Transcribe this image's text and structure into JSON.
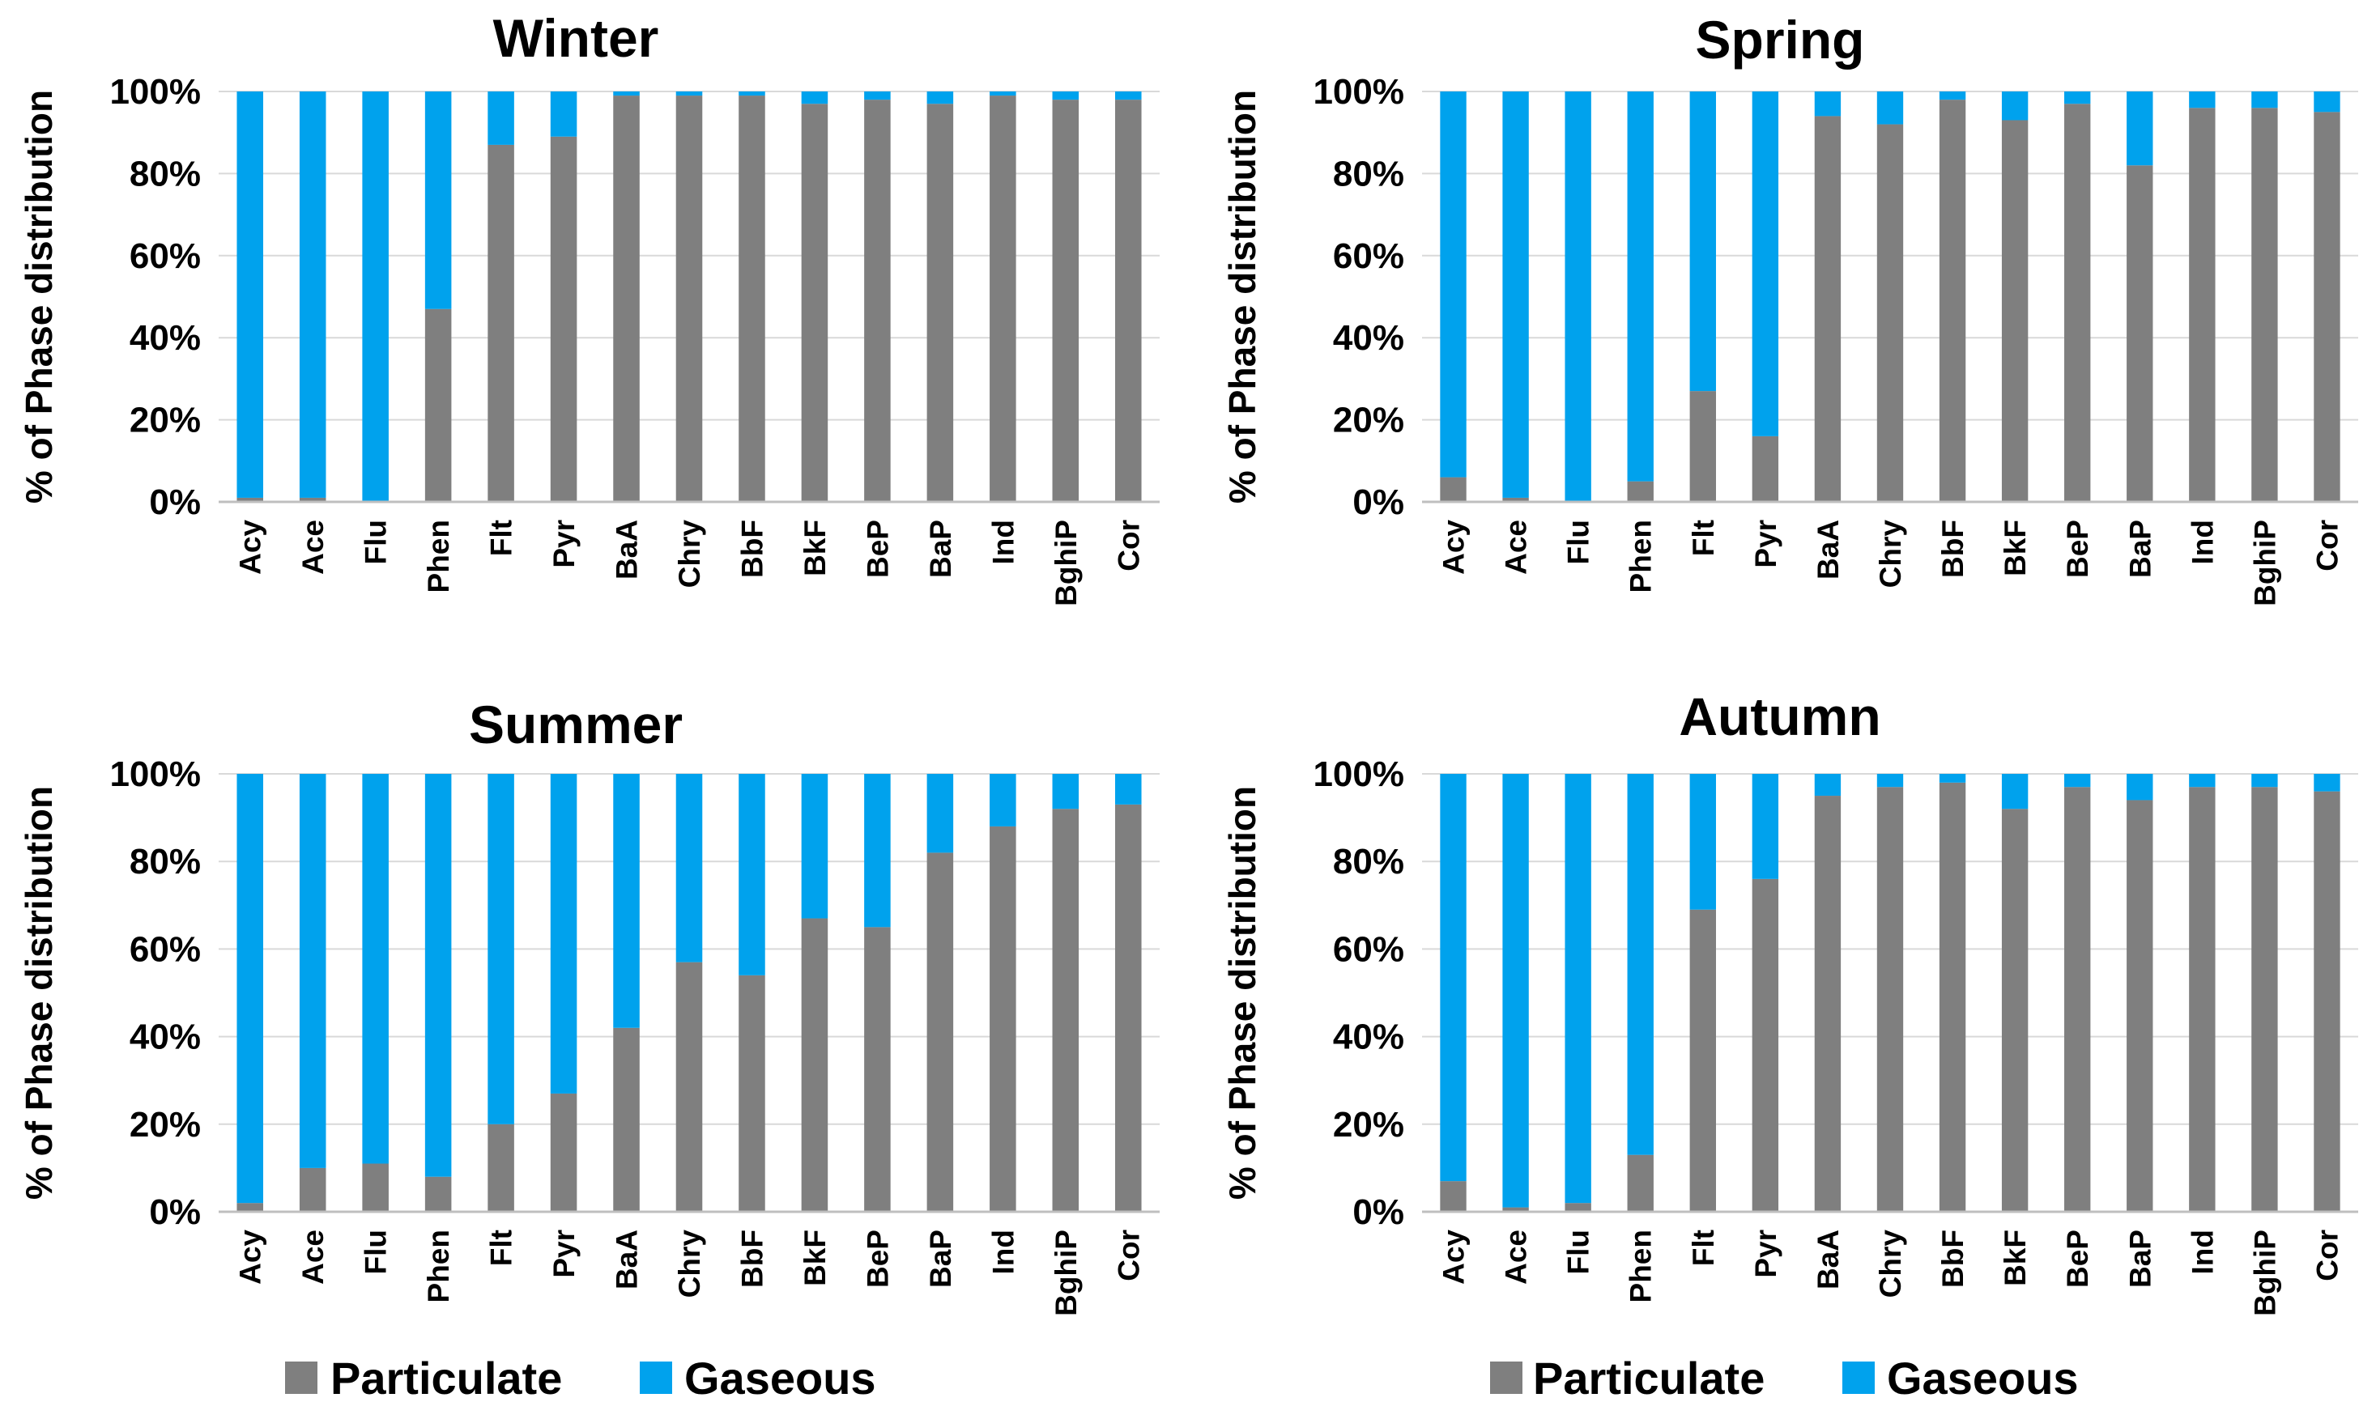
{
  "legend": {
    "items": [
      {
        "name": "Particulate",
        "color": "#7f7f7f"
      },
      {
        "name": "Gaseous",
        "color": "#00a2ed"
      }
    ]
  },
  "chart_data": [
    {
      "type": "bar",
      "stacked": true,
      "title": "Winter",
      "ylabel": "% of Phase distribution",
      "xlabel": "",
      "ylim": [
        0,
        100
      ],
      "yticks": [
        "0%",
        "20%",
        "40%",
        "60%",
        "80%",
        "100%"
      ],
      "categories": [
        "Acy",
        "Ace",
        "Flu",
        "Phen",
        "Flt",
        "Pyr",
        "BaA",
        "Chry",
        "BbF",
        "BkF",
        "BeP",
        "BaP",
        "Ind",
        "BghiP",
        "Cor"
      ],
      "series": [
        {
          "name": "Particulate",
          "values": [
            1,
            1,
            0,
            47,
            87,
            89,
            99,
            99,
            99,
            97,
            98,
            97,
            99,
            98,
            98
          ]
        },
        {
          "name": "Gaseous",
          "values": [
            99,
            99,
            100,
            53,
            13,
            11,
            1,
            1,
            1,
            3,
            2,
            3,
            1,
            2,
            2
          ]
        }
      ]
    },
    {
      "type": "bar",
      "stacked": true,
      "title": "Spring",
      "ylabel": "% of Phase distribution",
      "xlabel": "",
      "ylim": [
        0,
        100
      ],
      "yticks": [
        "0%",
        "20%",
        "40%",
        "60%",
        "80%",
        "100%"
      ],
      "categories": [
        "Acy",
        "Ace",
        "Flu",
        "Phen",
        "Flt",
        "Pyr",
        "BaA",
        "Chry",
        "BbF",
        "BkF",
        "BeP",
        "BaP",
        "Ind",
        "BghiP",
        "Cor"
      ],
      "series": [
        {
          "name": "Particulate",
          "values": [
            6,
            1,
            0,
            5,
            27,
            16,
            94,
            92,
            98,
            93,
            97,
            82,
            96,
            96,
            95
          ]
        },
        {
          "name": "Gaseous",
          "values": [
            94,
            99,
            100,
            95,
            73,
            84,
            6,
            8,
            2,
            7,
            3,
            18,
            4,
            4,
            5
          ]
        }
      ]
    },
    {
      "type": "bar",
      "stacked": true,
      "title": "Summer",
      "ylabel": "% of Phase distribution",
      "xlabel": "",
      "ylim": [
        0,
        100
      ],
      "yticks": [
        "0%",
        "20%",
        "40%",
        "60%",
        "80%",
        "100%"
      ],
      "categories": [
        "Acy",
        "Ace",
        "Flu",
        "Phen",
        "Flt",
        "Pyr",
        "BaA",
        "Chry",
        "BbF",
        "BkF",
        "BeP",
        "BaP",
        "Ind",
        "BghiP",
        "Cor"
      ],
      "series": [
        {
          "name": "Particulate",
          "values": [
            2,
            10,
            11,
            8,
            20,
            27,
            42,
            57,
            54,
            67,
            65,
            82,
            88,
            92,
            93
          ]
        },
        {
          "name": "Gaseous",
          "values": [
            98,
            90,
            89,
            92,
            80,
            73,
            58,
            43,
            46,
            33,
            35,
            18,
            12,
            8,
            7
          ]
        }
      ]
    },
    {
      "type": "bar",
      "stacked": true,
      "title": "Autumn",
      "ylabel": "% of Phase distribution",
      "xlabel": "",
      "ylim": [
        0,
        100
      ],
      "yticks": [
        "0%",
        "20%",
        "40%",
        "60%",
        "80%",
        "100%"
      ],
      "categories": [
        "Acy",
        "Ace",
        "Flu",
        "Phen",
        "Flt",
        "Pyr",
        "BaA",
        "Chry",
        "BbF",
        "BkF",
        "BeP",
        "BaP",
        "Ind",
        "BghiP",
        "Cor"
      ],
      "series": [
        {
          "name": "Particulate",
          "values": [
            7,
            1,
            2,
            13,
            69,
            76,
            95,
            97,
            98,
            92,
            97,
            94,
            97,
            97,
            96
          ]
        },
        {
          "name": "Gaseous",
          "values": [
            93,
            99,
            98,
            87,
            31,
            24,
            5,
            3,
            2,
            8,
            3,
            6,
            3,
            3,
            4
          ]
        }
      ]
    }
  ]
}
